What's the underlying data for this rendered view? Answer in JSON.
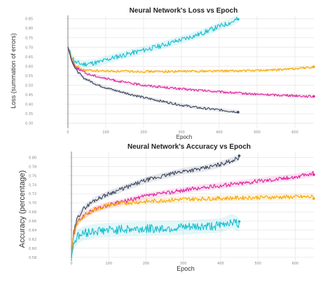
{
  "chart_data": [
    {
      "type": "line",
      "title": "Neural Network's Loss vs Epoch",
      "xlabel": "Epoch",
      "ylabel": "Loss (summation of errors)",
      "xlim": [
        0,
        650
      ],
      "ylim": [
        0.28,
        0.86
      ],
      "xticks": [
        0,
        100,
        200,
        300,
        400,
        500,
        600
      ],
      "yticks": [
        0.3,
        0.35,
        0.4,
        0.45,
        0.5,
        0.55,
        0.6,
        0.65,
        0.7,
        0.75,
        0.8,
        0.85
      ],
      "ytick_labels": [
        "0.30",
        "0.35",
        "0.40",
        "0.45",
        "0.50",
        "0.55",
        "0.60",
        "0.65",
        "0.70",
        "0.75",
        "0.80",
        "0.85"
      ],
      "grid": true,
      "legend": "none",
      "series": [
        {
          "color": "#17becf",
          "x": [
            0,
            10,
            20,
            40,
            80,
            120,
            160,
            200,
            250,
            300,
            350,
            400,
            430,
            450
          ],
          "y": [
            0.7,
            0.65,
            0.62,
            0.61,
            0.62,
            0.645,
            0.665,
            0.685,
            0.71,
            0.74,
            0.77,
            0.81,
            0.83,
            0.85
          ]
        },
        {
          "color": "#f5a800",
          "x": [
            0,
            10,
            20,
            40,
            80,
            150,
            250,
            350,
            450,
            550,
            650
          ],
          "y": [
            0.7,
            0.64,
            0.6,
            0.58,
            0.575,
            0.573,
            0.572,
            0.574,
            0.575,
            0.58,
            0.595
          ]
        },
        {
          "color": "#e0219e",
          "x": [
            0,
            10,
            20,
            50,
            100,
            150,
            200,
            300,
            400,
            500,
            600,
            650
          ],
          "y": [
            0.7,
            0.63,
            0.595,
            0.56,
            0.535,
            0.515,
            0.5,
            0.48,
            0.465,
            0.452,
            0.445,
            0.44
          ]
        },
        {
          "color": "#3c4760",
          "x": [
            0,
            10,
            20,
            40,
            80,
            120,
            160,
            200,
            250,
            300,
            350,
            400,
            430,
            450
          ],
          "y": [
            0.7,
            0.63,
            0.585,
            0.54,
            0.5,
            0.475,
            0.455,
            0.435,
            0.415,
            0.395,
            0.38,
            0.37,
            0.363,
            0.36
          ]
        }
      ]
    },
    {
      "type": "line",
      "title": "Neural Network's Accuracy vs Epoch",
      "xlabel": "Epoch",
      "ylabel": "Accuracy (percentage)",
      "xlim": [
        0,
        650
      ],
      "ylim": [
        0.575,
        0.81
      ],
      "xticks": [
        0,
        100,
        200,
        300,
        400,
        500,
        600
      ],
      "yticks": [
        0.58,
        0.6,
        0.62,
        0.64,
        0.66,
        0.68,
        0.7,
        0.72,
        0.74,
        0.76,
        0.78,
        0.8
      ],
      "ytick_labels": [
        "0.58",
        "0.60",
        "0.62",
        "0.64",
        "0.66",
        "0.68",
        "0.70",
        "0.72",
        "0.74",
        "0.76",
        "0.78",
        "0.80"
      ],
      "grid": true,
      "legend": "none",
      "series": [
        {
          "color": "#3c4760",
          "x": [
            0,
            5,
            15,
            30,
            60,
            100,
            150,
            200,
            250,
            300,
            350,
            400,
            430,
            450
          ],
          "y": [
            0.58,
            0.63,
            0.665,
            0.685,
            0.705,
            0.72,
            0.735,
            0.75,
            0.76,
            0.77,
            0.775,
            0.785,
            0.793,
            0.8
          ]
        },
        {
          "color": "#e0219e",
          "x": [
            0,
            5,
            15,
            30,
            60,
            100,
            150,
            200,
            300,
            400,
            500,
            600,
            650
          ],
          "y": [
            0.58,
            0.625,
            0.655,
            0.67,
            0.685,
            0.695,
            0.705,
            0.715,
            0.728,
            0.738,
            0.748,
            0.757,
            0.765
          ]
        },
        {
          "color": "#f5a800",
          "x": [
            0,
            5,
            15,
            30,
            60,
            100,
            150,
            200,
            300,
            400,
            500,
            600,
            650
          ],
          "y": [
            0.58,
            0.625,
            0.655,
            0.668,
            0.685,
            0.695,
            0.7,
            0.703,
            0.708,
            0.71,
            0.712,
            0.713,
            0.713
          ]
        },
        {
          "color": "#17becf",
          "x": [
            0,
            5,
            15,
            30,
            60,
            100,
            150,
            200,
            250,
            300,
            350,
            400,
            430,
            450
          ],
          "y": [
            0.58,
            0.61,
            0.625,
            0.632,
            0.638,
            0.64,
            0.642,
            0.643,
            0.644,
            0.645,
            0.648,
            0.65,
            0.66,
            0.652
          ]
        }
      ]
    }
  ]
}
